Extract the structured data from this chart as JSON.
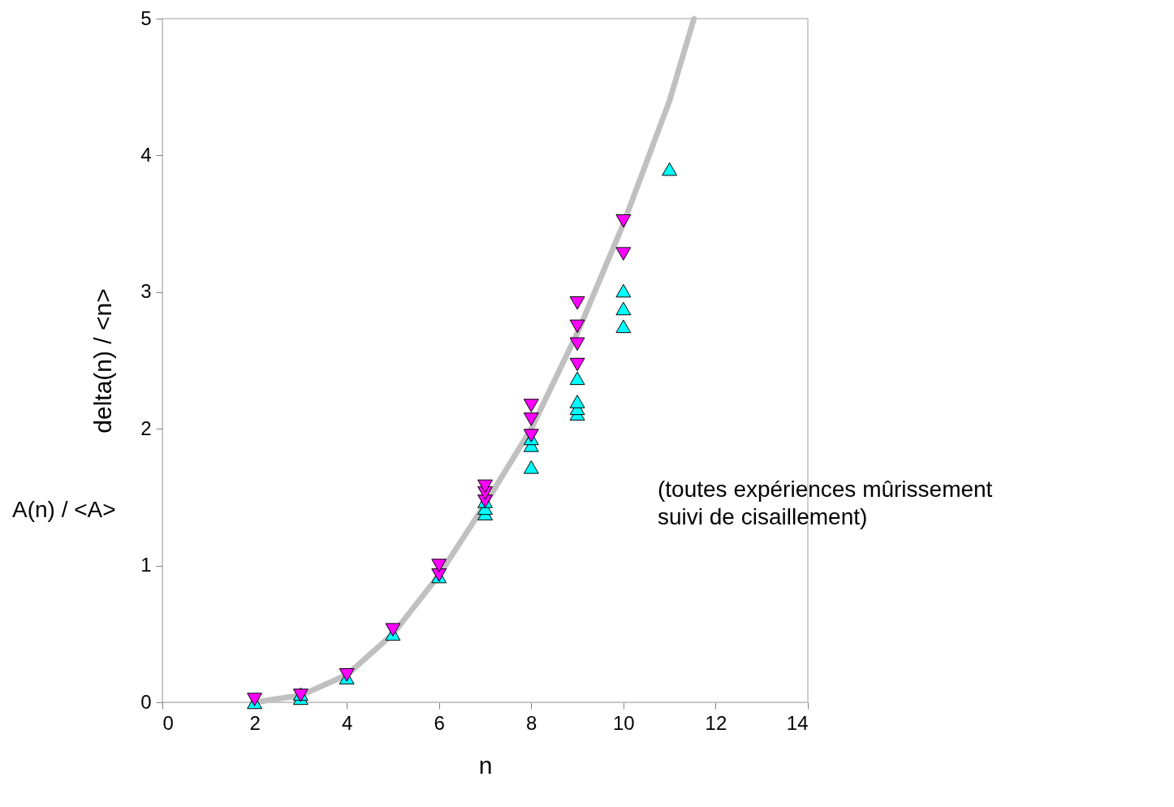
{
  "chart_data": {
    "type": "scatter",
    "xlabel": "n",
    "ylabel": "delta(n) / <n>",
    "xlim": [
      0,
      14
    ],
    "xticks": [
      0,
      2,
      4,
      6,
      8,
      10,
      12,
      14
    ],
    "ylim": [
      0,
      5
    ],
    "yticks": [
      0,
      1,
      2,
      3,
      4,
      5
    ],
    "grid": false,
    "annotations": [
      "A(n) / <A>",
      "(toutes expériences mûrissement\nsuivi de cisaillement)"
    ],
    "series": [
      {
        "type": "line",
        "color": "#c0c0c0",
        "marker": "none",
        "line_style": "solid",
        "x": [
          2,
          3,
          4,
          5,
          6,
          7,
          8,
          9,
          10,
          11,
          11.53
        ],
        "values": [
          0,
          0.05,
          0.2,
          0.5,
          0.93,
          1.45,
          2.0,
          2.7,
          3.5,
          4.4,
          5.0
        ]
      },
      {
        "color": "#00ffff",
        "marker": "triangle",
        "x": [
          2,
          3,
          3,
          4,
          5,
          6,
          7,
          7,
          7,
          8,
          8,
          8,
          9,
          9,
          9,
          9,
          10,
          10,
          10,
          11
        ],
        "values": [
          0,
          0.03,
          0.06,
          0.18,
          0.5,
          0.92,
          1.38,
          1.42,
          1.47,
          1.72,
          1.88,
          1.93,
          2.11,
          2.15,
          2.2,
          2.37,
          2.75,
          2.88,
          3.01,
          3.9
        ]
      },
      {
        "color": "#ff00ff",
        "marker": "triangle-down",
        "x": [
          2,
          3,
          4,
          5,
          6,
          6,
          7,
          7,
          7,
          8,
          8,
          8,
          9,
          9,
          9,
          9,
          10,
          10
        ],
        "values": [
          0.02,
          0.05,
          0.2,
          0.53,
          0.93,
          1.0,
          1.47,
          1.53,
          1.58,
          1.95,
          2.07,
          2.17,
          2.47,
          2.62,
          2.75,
          2.92,
          3.28,
          3.52
        ]
      }
    ]
  }
}
